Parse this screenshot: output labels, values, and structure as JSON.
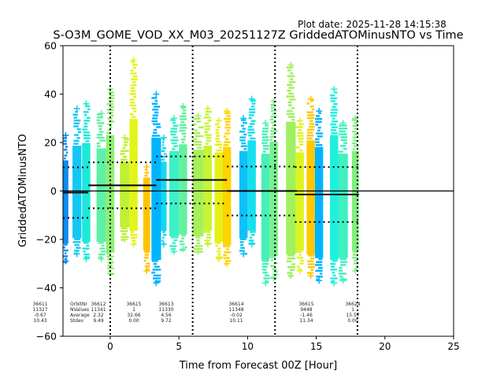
{
  "chart_data": {
    "type": "scatter",
    "title": "S-O3M_GOME_VOD_XX_M03_20251127Z GriddedATOMinusNTO vs Time",
    "plot_date": "Plot date: 2025-11-28 14:15:38",
    "xlabel": "Time from Forecast 00Z [Hour]",
    "ylabel": "GriddedATOMinusNTO",
    "xlim": [
      -3.44,
      25
    ],
    "ylim": [
      -60,
      60
    ],
    "xticks": [
      0,
      5,
      10,
      15,
      20,
      25
    ],
    "yticks": [
      -60,
      -40,
      -20,
      0,
      20,
      40,
      60
    ],
    "zero_line": 0,
    "forecast_boundaries": [
      0,
      6,
      12,
      18
    ],
    "stats_labels": [
      "OrbitNr",
      "NValues",
      "Average",
      "Stdev"
    ],
    "orbits": [
      {
        "orbit": "36611",
        "nvalues": "11327",
        "average": "-0.67",
        "stdev": "10.43",
        "xrange": [
          -3.44,
          -1.6
        ],
        "mean": -0.67,
        "std": 10.43
      },
      {
        "orbit": "36612",
        "nvalues": "11341",
        "average": "2.32",
        "stdev": "9.49",
        "xrange": [
          -1.6,
          3.35
        ],
        "mean": 2.32,
        "std": 9.49
      },
      {
        "orbit": "36615",
        "nvalues": "1",
        "average": "32.66",
        "stdev": "0.00",
        "xrange": null,
        "mean": 32.66,
        "std": 0
      },
      {
        "orbit": "36613",
        "nvalues": "11330",
        "average": "4.56",
        "stdev": "9.72",
        "xrange": [
          3.35,
          8.5
        ],
        "mean": 4.56,
        "std": 9.72
      },
      {
        "orbit": "36614",
        "nvalues": "11348",
        "average": "-0.02",
        "stdev": "10.11",
        "xrange": [
          8.5,
          13.6
        ],
        "mean": -0.02,
        "std": 10.11
      },
      {
        "orbit": "36615",
        "nvalues": "9448",
        "average": "-1.46",
        "stdev": "11.34",
        "xrange": [
          13.45,
          18.1
        ],
        "mean": -1.46,
        "std": 11.34
      },
      {
        "orbit": "36624",
        "nvalues": "1",
        "average": "15.57",
        "stdev": "0.00",
        "xrange": null,
        "mean": 15.57,
        "std": 0
      }
    ],
    "strips": [
      {
        "x0": -3.44,
        "x1": -3.05,
        "top": 23,
        "bottom": -29,
        "color": "#0a8cf0"
      },
      {
        "x0": -2.75,
        "x1": -2.1,
        "top": 34,
        "bottom": -26,
        "color": "#14c8f5"
      },
      {
        "x0": -2.05,
        "x1": -1.45,
        "top": 36,
        "bottom": -28,
        "color": "#1ee8d8"
      },
      {
        "x0": -1.0,
        "x1": -0.3,
        "top": 32,
        "bottom": -28,
        "color": "#5ff0a8"
      },
      {
        "x0": -0.3,
        "x1": 0.3,
        "top": 42,
        "bottom": -34,
        "color": "#8cf06e"
      },
      {
        "x0": 0.7,
        "x1": 1.4,
        "top": 22,
        "bottom": -20,
        "color": "#bff034"
      },
      {
        "x0": 1.4,
        "x1": 2.0,
        "top": 54,
        "bottom": -22,
        "color": "#e2f51a"
      },
      {
        "x0": 2.4,
        "x1": 2.9,
        "top": 10,
        "bottom": -33,
        "color": "#ffc400"
      },
      {
        "x0": 3.0,
        "x1": 3.7,
        "top": 40,
        "bottom": -38,
        "color": "#00b4ff"
      },
      {
        "x0": 3.7,
        "x1": 4.1,
        "top": 22,
        "bottom": -22,
        "color": "#12d8f2"
      },
      {
        "x0": 4.3,
        "x1": 5.0,
        "top": 30,
        "bottom": -25,
        "color": "#3cf0c8"
      },
      {
        "x0": 5.0,
        "x1": 5.6,
        "top": 35,
        "bottom": -24,
        "color": "#64f0a0"
      },
      {
        "x0": 6.0,
        "x1": 6.8,
        "top": 31,
        "bottom": -25,
        "color": "#a8f05a"
      },
      {
        "x0": 6.8,
        "x1": 7.4,
        "top": 34,
        "bottom": -22,
        "color": "#c6f534"
      },
      {
        "x0": 7.6,
        "x1": 8.2,
        "top": 29,
        "bottom": -28,
        "color": "#e6f018"
      },
      {
        "x0": 8.2,
        "x1": 8.8,
        "top": 33,
        "bottom": -30,
        "color": "#ffd400"
      },
      {
        "x0": 9.4,
        "x1": 10.0,
        "top": 30,
        "bottom": -26,
        "color": "#10c0f8"
      },
      {
        "x0": 10.0,
        "x1": 10.6,
        "top": 38,
        "bottom": -22,
        "color": "#16e0ee"
      },
      {
        "x0": 11.0,
        "x1": 11.6,
        "top": 28,
        "bottom": -38,
        "color": "#48f0b8"
      },
      {
        "x0": 11.6,
        "x1": 12.2,
        "top": 37,
        "bottom": -36,
        "color": "#78f090"
      },
      {
        "x0": 12.8,
        "x1": 13.5,
        "top": 52,
        "bottom": -35,
        "color": "#a0f060"
      },
      {
        "x0": 13.5,
        "x1": 14.1,
        "top": 29,
        "bottom": -33,
        "color": "#dcf51e"
      },
      {
        "x0": 14.3,
        "x1": 14.9,
        "top": 38,
        "bottom": -35,
        "color": "#ffc800"
      },
      {
        "x0": 14.9,
        "x1": 15.5,
        "top": 33,
        "bottom": -37,
        "color": "#00b4ff"
      },
      {
        "x0": 16.0,
        "x1": 16.6,
        "top": 42,
        "bottom": -38,
        "color": "#1ef0dc"
      },
      {
        "x0": 16.6,
        "x1": 17.3,
        "top": 28,
        "bottom": -37,
        "color": "#40f0c0"
      },
      {
        "x0": 17.6,
        "x1": 18.1,
        "top": 30,
        "bottom": -33,
        "color": "#80f080"
      }
    ],
    "grid": false,
    "legend": "none"
  }
}
